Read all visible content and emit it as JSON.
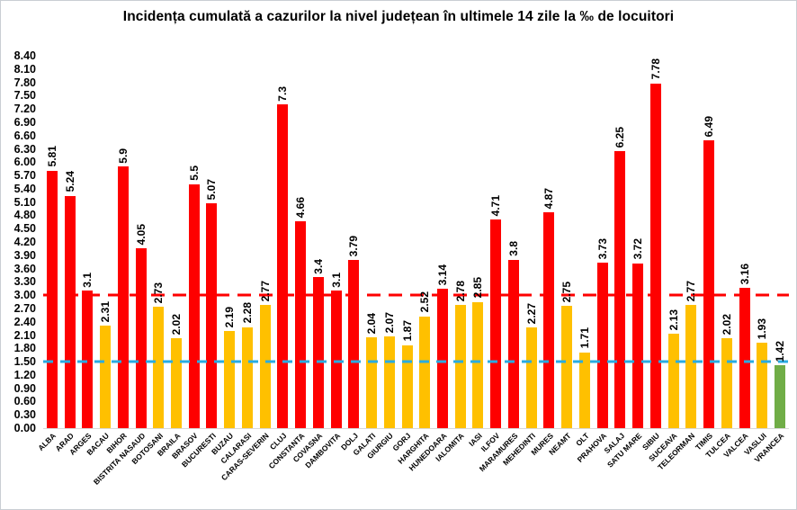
{
  "title": "Incidența cumulată a cazurilor la nivel județean în ultimele 14 zile la ‰ de locuitori",
  "colors": {
    "red": "#fe0000",
    "yellow": "#ffc000",
    "green": "#70ad47",
    "threshold_red": "#fe0000",
    "threshold_blue": "#29abe2"
  },
  "chart_data": {
    "type": "bar",
    "title": "Incidența cumulată a cazurilor la nivel județean în ultimele 14 zile la ‰ de locuitori",
    "xlabel": "",
    "ylabel": "",
    "ylim": [
      0,
      8.4
    ],
    "ytick_step": 0.3,
    "grid": false,
    "legend": "none",
    "yticks": [
      "8.40",
      "8.10",
      "7.80",
      "7.50",
      "7.20",
      "6.90",
      "6.60",
      "6.30",
      "6.00",
      "5.70",
      "5.40",
      "5.10",
      "4.80",
      "4.50",
      "4.20",
      "3.90",
      "3.60",
      "3.30",
      "3.00",
      "2.70",
      "2.40",
      "2.10",
      "1.80",
      "1.50",
      "1.20",
      "0.90",
      "0.60",
      "0.30",
      "0.00"
    ],
    "categories": [
      "ALBA",
      "ARAD",
      "ARGES",
      "BACAU",
      "BIHOR",
      "BISTRITA NASAUD",
      "BOTOSANI",
      "BRAILA",
      "BRASOV",
      "BUCURESTI",
      "BUZAU",
      "CALARASI",
      "CARAS-SEVERIN",
      "CLUJ",
      "CONSTANTA",
      "COVASNA",
      "DAMBOVITA",
      "DOLJ",
      "GALATI",
      "GIURGIU",
      "GORJ",
      "HARGHITA",
      "HUNEDOARA",
      "IALOMITA",
      "IASI",
      "ILFOV",
      "MARAMURES",
      "MEHEDINTI",
      "MURES",
      "NEAMT",
      "OLT",
      "PRAHOVA",
      "SALAJ",
      "SATU MARE",
      "SIBIU",
      "SUCEAVA",
      "TELEORMAN",
      "TIMIS",
      "TULCEA",
      "VALCEA",
      "VASLUI",
      "VRANCEA"
    ],
    "values": [
      5.81,
      5.24,
      3.1,
      2.31,
      5.9,
      4.05,
      2.73,
      2.02,
      5.5,
      5.07,
      2.19,
      2.28,
      2.77,
      7.3,
      4.66,
      3.4,
      3.1,
      3.79,
      2.04,
      2.07,
      1.87,
      2.52,
      3.14,
      2.78,
      2.85,
      4.71,
      3.8,
      2.27,
      4.87,
      2.75,
      1.71,
      3.73,
      6.25,
      3.72,
      7.78,
      2.13,
      2.77,
      6.49,
      2.02,
      3.16,
      1.93,
      1.42
    ],
    "labels": [
      "5.81",
      "5.24",
      "3.1",
      "2.31",
      "5.9",
      "4.05",
      "2.73",
      "2.02",
      "5.5",
      "5.07",
      "2.19",
      "2.28",
      "2.77",
      "7.3",
      "4.66",
      "3.4",
      "3.1",
      "3.79",
      "2.04",
      "2.07",
      "1.87",
      "2.52",
      "3.14",
      "2.78",
      "2.85",
      "4.71",
      "3.8",
      "2.27",
      "4.87",
      "2.75",
      "1.71",
      "3.73",
      "6.25",
      "3.72",
      "7.78",
      "2.13",
      "2.77",
      "6.49",
      "2.02",
      "3.16",
      "1.93",
      "1.42"
    ],
    "bar_colors": [
      "red",
      "red",
      "red",
      "yellow",
      "red",
      "red",
      "yellow",
      "yellow",
      "red",
      "red",
      "yellow",
      "yellow",
      "yellow",
      "red",
      "red",
      "red",
      "red",
      "red",
      "yellow",
      "yellow",
      "yellow",
      "yellow",
      "red",
      "yellow",
      "yellow",
      "red",
      "red",
      "yellow",
      "red",
      "yellow",
      "yellow",
      "red",
      "red",
      "red",
      "red",
      "yellow",
      "yellow",
      "red",
      "yellow",
      "red",
      "yellow",
      "green"
    ],
    "reference_lines": [
      {
        "value": 3.0,
        "color_key": "threshold_red",
        "style": "dashed",
        "dash": 15,
        "gap": 9
      },
      {
        "value": 1.5,
        "color_key": "threshold_blue",
        "style": "dashed",
        "dash": 11,
        "gap": 8
      }
    ]
  }
}
